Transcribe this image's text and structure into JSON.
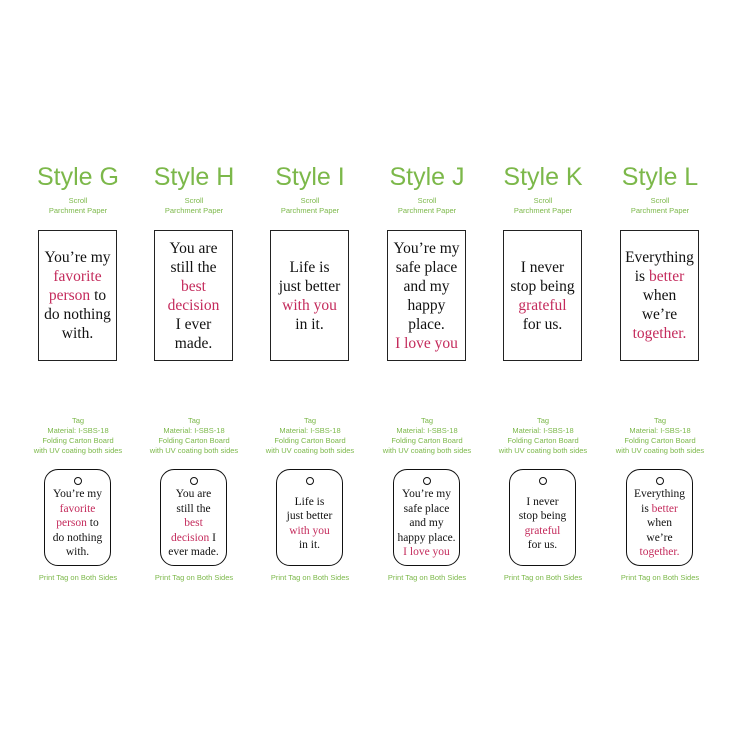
{
  "colors": {
    "accent_green": "#7cb84a",
    "highlight_red": "#c42b5c"
  },
  "styles": [
    {
      "title": "Style G",
      "sub": [
        "Scroll",
        "Parchment Paper"
      ],
      "card": [
        [
          [
            "You’re my",
            0
          ]
        ],
        [
          [
            "favorite",
            1
          ]
        ],
        [
          [
            "person",
            1
          ],
          [
            " to",
            0
          ]
        ],
        [
          [
            "do nothing",
            0
          ]
        ],
        [
          [
            "with.",
            0
          ]
        ]
      ],
      "tag_info": [
        "Tag",
        "Material: I-SBS-18",
        "Folding Carton Board",
        "with UV coating both sides"
      ],
      "tag": [
        [
          [
            "You’re my",
            0
          ]
        ],
        [
          [
            "favorite",
            1
          ]
        ],
        [
          [
            "person",
            1
          ],
          [
            " to",
            0
          ]
        ],
        [
          [
            "do nothing",
            0
          ]
        ],
        [
          [
            "with.",
            0
          ]
        ]
      ],
      "print": "Print Tag on Both Sides"
    },
    {
      "title": "Style H",
      "sub": [
        "Scroll",
        "Parchment Paper"
      ],
      "card": [
        [
          [
            "You are",
            0
          ]
        ],
        [
          [
            "still the",
            0
          ]
        ],
        [
          [
            "best",
            1
          ]
        ],
        [
          [
            "decision",
            1
          ]
        ],
        [
          [
            "I ever",
            0
          ]
        ],
        [
          [
            "made.",
            0
          ]
        ]
      ],
      "tag_info": [
        "Tag",
        "Material: I-SBS-18",
        "Folding Carton Board",
        "with UV coating both sides"
      ],
      "tag": [
        [
          [
            "You are",
            0
          ]
        ],
        [
          [
            "still the",
            0
          ]
        ],
        [
          [
            "best",
            1
          ]
        ],
        [
          [
            "decision",
            1
          ],
          [
            " I",
            0
          ]
        ],
        [
          [
            "ever made.",
            0
          ]
        ]
      ],
      "print": "Print Tag on Both Sides"
    },
    {
      "title": "Style I",
      "sub": [
        "Scroll",
        "Parchment Paper"
      ],
      "card": [
        [
          [
            "Life is",
            0
          ]
        ],
        [
          [
            "just better",
            0
          ]
        ],
        [
          [
            "with you",
            1
          ]
        ],
        [
          [
            "in it.",
            0
          ]
        ]
      ],
      "tag_info": [
        "Tag",
        "Material: I-SBS-18",
        "Folding Carton Board",
        "with UV coating both sides"
      ],
      "tag": [
        [
          [
            "Life is",
            0
          ]
        ],
        [
          [
            "just better",
            0
          ]
        ],
        [
          [
            "with you",
            1
          ]
        ],
        [
          [
            "in it.",
            0
          ]
        ]
      ],
      "print": "Print Tag on Both Sides"
    },
    {
      "title": "Style J",
      "sub": [
        "Scroll",
        "Parchment Paper"
      ],
      "card": [
        [
          [
            "You’re my",
            0
          ]
        ],
        [
          [
            "safe place",
            0
          ]
        ],
        [
          [
            "and my",
            0
          ]
        ],
        [
          [
            "happy",
            0
          ]
        ],
        [
          [
            "place.",
            0
          ]
        ],
        [
          [
            "I love you",
            1
          ]
        ]
      ],
      "tag_info": [
        "Tag",
        "Material: I-SBS-18",
        "Folding Carton Board",
        "with UV coating both sides"
      ],
      "tag": [
        [
          [
            "You’re my",
            0
          ]
        ],
        [
          [
            "safe place",
            0
          ]
        ],
        [
          [
            "and my",
            0
          ]
        ],
        [
          [
            "happy place.",
            0
          ]
        ],
        [
          [
            "I love you",
            1
          ]
        ]
      ],
      "print": "Print Tag on Both Sides"
    },
    {
      "title": "Style K",
      "sub": [
        "Scroll",
        "Parchment Paper"
      ],
      "card": [
        [
          [
            "I never",
            0
          ]
        ],
        [
          [
            "stop being",
            0
          ]
        ],
        [
          [
            "grateful",
            1
          ]
        ],
        [
          [
            "for us.",
            0
          ]
        ]
      ],
      "tag_info": [
        "Tag",
        "Material: I-SBS-18",
        "Folding Carton Board",
        "with UV coating both sides"
      ],
      "tag": [
        [
          [
            "I never",
            0
          ]
        ],
        [
          [
            "stop being",
            0
          ]
        ],
        [
          [
            "grateful",
            1
          ]
        ],
        [
          [
            "for us.",
            0
          ]
        ]
      ],
      "print": "Print Tag on Both Sides"
    },
    {
      "title": "Style L",
      "sub": [
        "Scroll",
        "Parchment Paper"
      ],
      "card": [
        [
          [
            "Everything",
            0
          ]
        ],
        [
          [
            "is ",
            0
          ],
          [
            "better",
            1
          ]
        ],
        [
          [
            "when",
            0
          ]
        ],
        [
          [
            "we’re",
            0
          ]
        ],
        [
          [
            "together.",
            1
          ]
        ]
      ],
      "tag_info": [
        "Tag",
        "Material: I-SBS-18",
        "Folding Carton Board",
        "with UV coating both sides"
      ],
      "tag": [
        [
          [
            "Everything",
            0
          ]
        ],
        [
          [
            "is ",
            0
          ],
          [
            "better",
            1
          ]
        ],
        [
          [
            "when",
            0
          ]
        ],
        [
          [
            "we’re",
            0
          ]
        ],
        [
          [
            "together.",
            1
          ]
        ]
      ],
      "print": "Print Tag on Both Sides"
    }
  ]
}
